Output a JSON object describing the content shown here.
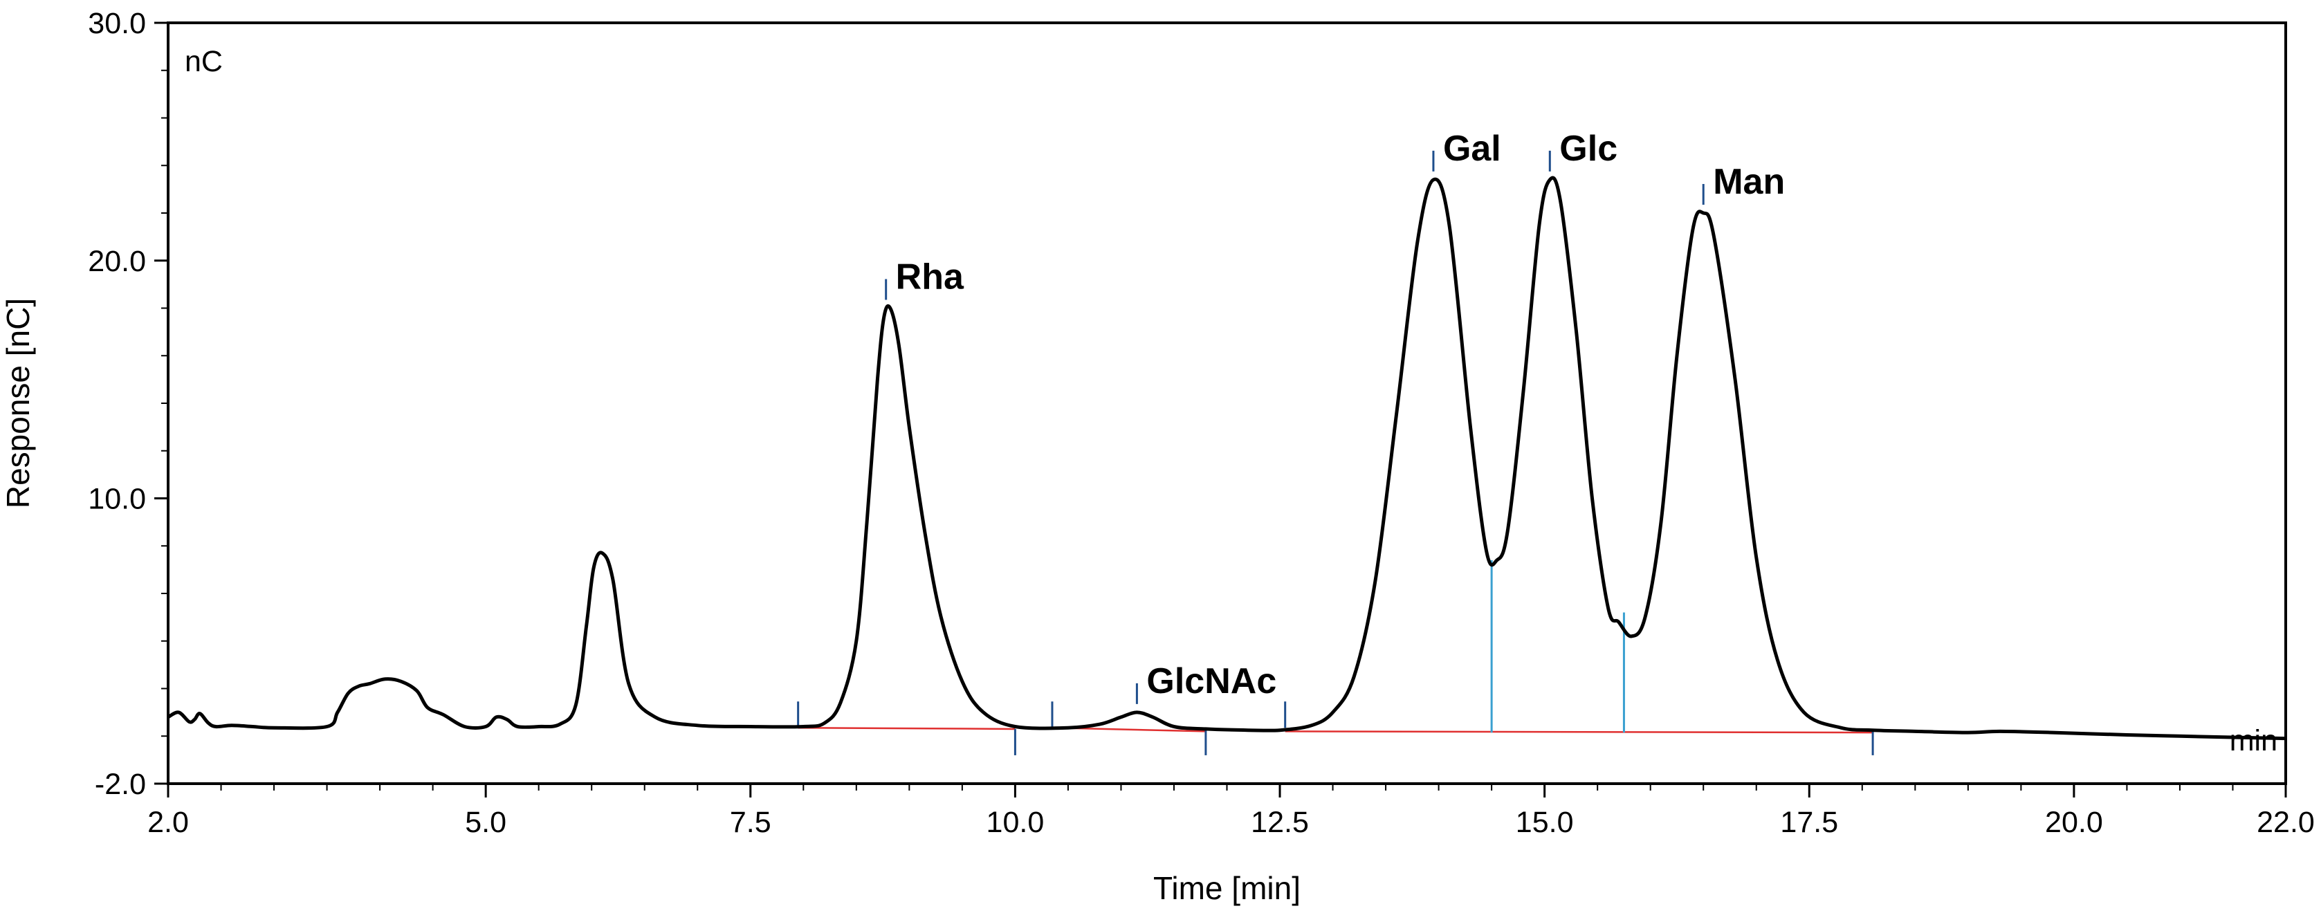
{
  "chart_data": {
    "type": "line",
    "title": "",
    "xlabel": "Time [min]",
    "ylabel": "Response [nC]",
    "y_unit_label": "nC",
    "x_unit_label": "min",
    "xlim": [
      2.0,
      22.0
    ],
    "ylim": [
      -2.0,
      30.0
    ],
    "xticks": [
      "2.0",
      "5.0",
      "7.5",
      "10.0",
      "12.5",
      "15.0",
      "17.5",
      "20.0",
      "22.0"
    ],
    "xtick_values": [
      2.0,
      5.0,
      7.5,
      10.0,
      12.5,
      15.0,
      17.5,
      20.0,
      22.0
    ],
    "yticks": [
      "-2.0",
      "10.0",
      "20.0",
      "30.0"
    ],
    "ytick_values": [
      -2.0,
      10.0,
      20.0,
      30.0
    ],
    "colors": {
      "trace": "#000000",
      "baseline": "#e03030",
      "marker": "#1f4e8c",
      "divider": "#3aa0d0"
    },
    "series": [
      {
        "name": "Response",
        "x": [
          2.0,
          2.1,
          2.2,
          2.25,
          2.3,
          2.38,
          2.45,
          2.6,
          2.8,
          3.0,
          3.5,
          3.6,
          3.7,
          3.8,
          3.9,
          4.05,
          4.2,
          4.35,
          4.45,
          4.6,
          4.8,
          5.0,
          5.1,
          5.2,
          5.3,
          5.5,
          5.7,
          5.85,
          5.95,
          6.02,
          6.1,
          6.2,
          6.35,
          6.6,
          7.0,
          7.5,
          8.0,
          8.2,
          8.35,
          8.5,
          8.6,
          8.7,
          8.76,
          8.82,
          8.9,
          9.0,
          9.15,
          9.3,
          9.5,
          9.7,
          10.0,
          10.5,
          10.8,
          11.0,
          11.15,
          11.3,
          11.5,
          11.8,
          12.2,
          12.5,
          12.8,
          13.0,
          13.2,
          13.4,
          13.6,
          13.8,
          13.95,
          14.1,
          14.3,
          14.45,
          14.55,
          14.65,
          14.8,
          14.95,
          15.05,
          15.15,
          15.3,
          15.45,
          15.6,
          15.7,
          15.82,
          15.95,
          16.1,
          16.25,
          16.4,
          16.5,
          16.6,
          16.8,
          17.0,
          17.2,
          17.45,
          17.8,
          18.1,
          18.5,
          19.0,
          19.3,
          19.8,
          20.5,
          21.0,
          21.5,
          22.0
        ],
        "values": [
          0.8,
          1.0,
          0.6,
          0.7,
          0.95,
          0.55,
          0.4,
          0.45,
          0.4,
          0.35,
          0.4,
          1.0,
          1.8,
          2.1,
          2.2,
          2.4,
          2.3,
          1.9,
          1.2,
          0.9,
          0.4,
          0.4,
          0.8,
          0.7,
          0.4,
          0.4,
          0.5,
          1.3,
          4.6,
          7.1,
          7.7,
          6.6,
          2.2,
          0.8,
          0.45,
          0.4,
          0.4,
          0.55,
          1.4,
          4.0,
          9.0,
          15.0,
          17.6,
          18.0,
          16.5,
          13.0,
          8.5,
          5.0,
          2.3,
          1.0,
          0.4,
          0.35,
          0.5,
          0.8,
          1.0,
          0.8,
          0.4,
          0.3,
          0.25,
          0.25,
          0.45,
          1.0,
          2.5,
          6.5,
          13.5,
          20.8,
          23.4,
          21.5,
          13.0,
          7.8,
          7.4,
          8.6,
          14.5,
          21.5,
          23.4,
          22.5,
          17.0,
          10.0,
          5.4,
          4.8,
          4.2,
          5.0,
          9.0,
          16.0,
          21.3,
          22.0,
          21.0,
          15.0,
          7.5,
          3.2,
          1.0,
          0.35,
          0.25,
          0.2,
          0.15,
          0.2,
          0.15,
          0.05,
          0.0,
          -0.05,
          -0.1
        ]
      }
    ],
    "baseline_segments": [
      {
        "x": [
          7.95,
          10.0
        ],
        "y": [
          0.35,
          0.3
        ]
      },
      {
        "x": [
          10.35,
          11.8
        ],
        "y": [
          0.35,
          0.2
        ]
      },
      {
        "x": [
          12.55,
          18.1
        ],
        "y": [
          0.2,
          0.15
        ]
      }
    ],
    "integration_markers_up": [
      7.95,
      10.35,
      12.55
    ],
    "integration_markers_down": [
      10.0,
      11.8,
      18.1
    ],
    "peak_dividers": [
      {
        "x": 14.5,
        "y_top": 7.4
      },
      {
        "x": 15.75,
        "y_top": 5.2
      }
    ],
    "peaks": [
      {
        "label": "Rha",
        "x": 8.78,
        "y": 18.0
      },
      {
        "label": "GlcNAc",
        "x": 11.15,
        "y": 1.0
      },
      {
        "label": "Gal",
        "x": 13.95,
        "y": 23.4
      },
      {
        "label": "Glc",
        "x": 15.05,
        "y": 23.4
      },
      {
        "label": "Man",
        "x": 16.5,
        "y": 22.0
      }
    ]
  }
}
